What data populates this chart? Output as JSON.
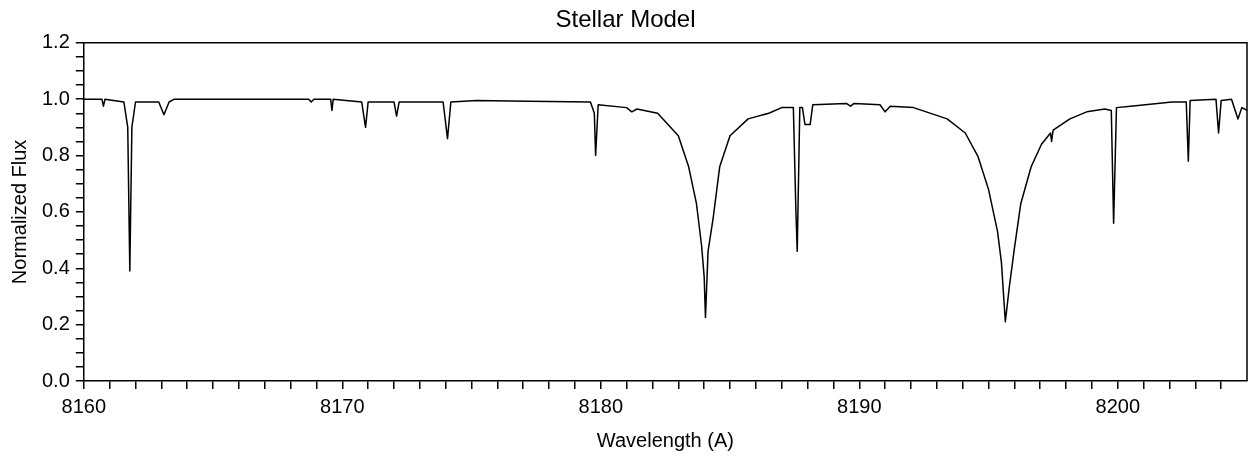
{
  "chart_data": {
    "type": "line",
    "title": "Stellar Model",
    "xlabel": "Wavelength (A)",
    "ylabel": "Normalized Flux",
    "color": "#000000",
    "legend": false,
    "grid": false,
    "marker": "none",
    "line_style": "solid",
    "xlim": [
      8160,
      8205
    ],
    "ylim": [
      0,
      1.2
    ],
    "xticks": [
      8160,
      {
        "value": 8161,
        "label": null
      },
      {
        "value": 8162,
        "label": null
      },
      {
        "value": 8163,
        "label": null
      },
      {
        "value": 8164,
        "label": null
      },
      {
        "value": 8165,
        "label": null
      },
      {
        "value": 8166,
        "label": null
      },
      {
        "value": 8167,
        "label": null
      },
      {
        "value": 8168,
        "label": null
      },
      {
        "value": 8169,
        "label": null
      },
      8170,
      {
        "value": 8171,
        "label": null
      },
      {
        "value": 8172,
        "label": null
      },
      {
        "value": 8173,
        "label": null
      },
      {
        "value": 8174,
        "label": null
      },
      {
        "value": 8175,
        "label": null
      },
      {
        "value": 8176,
        "label": null
      },
      {
        "value": 8177,
        "label": null
      },
      {
        "value": 8178,
        "label": null
      },
      {
        "value": 8179,
        "label": null
      },
      8180,
      {
        "value": 8181,
        "label": null
      },
      {
        "value": 8182,
        "label": null
      },
      {
        "value": 8183,
        "label": null
      },
      {
        "value": 8184,
        "label": null
      },
      {
        "value": 8185,
        "label": null
      },
      {
        "value": 8186,
        "label": null
      },
      {
        "value": 8187,
        "label": null
      },
      {
        "value": 8188,
        "label": null
      },
      {
        "value": 8189,
        "label": null
      },
      8190,
      {
        "value": 8191,
        "label": null
      },
      {
        "value": 8192,
        "label": null
      },
      {
        "value": 8193,
        "label": null
      },
      {
        "value": 8194,
        "label": null
      },
      {
        "value": 8195,
        "label": null
      },
      {
        "value": 8196,
        "label": null
      },
      {
        "value": 8197,
        "label": null
      },
      {
        "value": 8198,
        "label": null
      },
      {
        "value": 8199,
        "label": null
      },
      8200,
      {
        "value": 8201,
        "label": null
      },
      {
        "value": 8202,
        "label": null
      },
      {
        "value": 8203,
        "label": null
      },
      {
        "value": 8204,
        "label": null
      }
    ],
    "yticks": [
      {
        "value": 0,
        "label": "0.0"
      },
      {
        "value": 0.05,
        "label": null
      },
      {
        "value": 0.1,
        "label": null
      },
      {
        "value": 0.15,
        "label": null
      },
      {
        "value": 0.2,
        "label": "0.2"
      },
      {
        "value": 0.25,
        "label": null
      },
      {
        "value": 0.3,
        "label": null
      },
      {
        "value": 0.35,
        "label": null
      },
      {
        "value": 0.4,
        "label": "0.4"
      },
      {
        "value": 0.45,
        "label": null
      },
      {
        "value": 0.5,
        "label": null
      },
      {
        "value": 0.55,
        "label": null
      },
      {
        "value": 0.6,
        "label": "0.6"
      },
      {
        "value": 0.65,
        "label": null
      },
      {
        "value": 0.7,
        "label": null
      },
      {
        "value": 0.75,
        "label": null
      },
      {
        "value": 0.8,
        "label": "0.8"
      },
      {
        "value": 0.85,
        "label": null
      },
      {
        "value": 0.9,
        "label": null
      },
      {
        "value": 0.95,
        "label": null
      },
      {
        "value": 1,
        "label": "1.0"
      },
      {
        "value": 1.05,
        "label": null
      },
      {
        "value": 1.1,
        "label": null
      },
      {
        "value": 1.15,
        "label": null
      },
      {
        "value": 1.2,
        "label": "1.2"
      }
    ],
    "x": [
      8160.0,
      8160.7,
      8160.76,
      8160.82,
      8161.55,
      8161.7,
      8161.78,
      8161.86,
      8162.0,
      8162.9,
      8163.1,
      8163.3,
      8163.5,
      8168.7,
      8168.8,
      8168.9,
      8169.55,
      8169.6,
      8169.65,
      8170.75,
      8170.9,
      8171.0,
      8172.0,
      8172.1,
      8172.2,
      8173.3,
      8173.9,
      8174.07,
      8174.2,
      8175.2,
      8179.6,
      8179.75,
      8179.8,
      8179.9,
      8181.0,
      8181.2,
      8181.4,
      8182.2,
      8183.0,
      8183.4,
      8183.7,
      8183.9,
      8184.0,
      8184.05,
      8184.15,
      8184.35,
      8184.6,
      8185.0,
      8185.7,
      8186.5,
      8187.0,
      8187.45,
      8187.55,
      8187.6,
      8187.7,
      8187.8,
      8187.9,
      8188.1,
      8188.2,
      8189.5,
      8189.66,
      8189.8,
      8190.8,
      8191.0,
      8191.2,
      8192.1,
      8193.4,
      8194.1,
      8194.6,
      8195.0,
      8195.35,
      8195.5,
      8195.65,
      8195.8,
      8196.0,
      8196.25,
      8196.65,
      8197.05,
      8197.4,
      8197.44,
      8197.5,
      8198.15,
      8198.8,
      8199.5,
      8199.75,
      8199.84,
      8199.95,
      8200.5,
      8202.1,
      8202.65,
      8202.73,
      8202.8,
      8203.8,
      8203.9,
      8204.0,
      8204.4,
      8204.65,
      8204.8,
      8205.0
    ],
    "values": [
      1.0,
      1.0,
      0.975,
      1.0,
      0.99,
      0.9,
      0.39,
      0.9,
      0.99,
      0.99,
      0.945,
      0.99,
      1.0,
      1.0,
      0.99,
      1.0,
      1.0,
      0.96,
      1.0,
      0.99,
      0.9,
      0.99,
      0.99,
      0.94,
      0.99,
      0.99,
      0.99,
      0.86,
      0.99,
      0.995,
      0.99,
      0.95,
      0.8,
      0.98,
      0.97,
      0.955,
      0.965,
      0.95,
      0.87,
      0.76,
      0.63,
      0.48,
      0.37,
      0.225,
      0.46,
      0.58,
      0.76,
      0.87,
      0.93,
      0.95,
      0.97,
      0.97,
      0.6,
      0.46,
      0.97,
      0.97,
      0.91,
      0.91,
      0.98,
      0.985,
      0.975,
      0.985,
      0.98,
      0.955,
      0.975,
      0.97,
      0.93,
      0.88,
      0.795,
      0.68,
      0.53,
      0.42,
      0.21,
      0.33,
      0.47,
      0.63,
      0.76,
      0.84,
      0.88,
      0.85,
      0.89,
      0.93,
      0.955,
      0.965,
      0.96,
      0.56,
      0.97,
      0.975,
      0.99,
      0.99,
      0.78,
      0.995,
      1.0,
      0.88,
      0.995,
      1.0,
      0.93,
      0.97,
      0.96
    ]
  }
}
